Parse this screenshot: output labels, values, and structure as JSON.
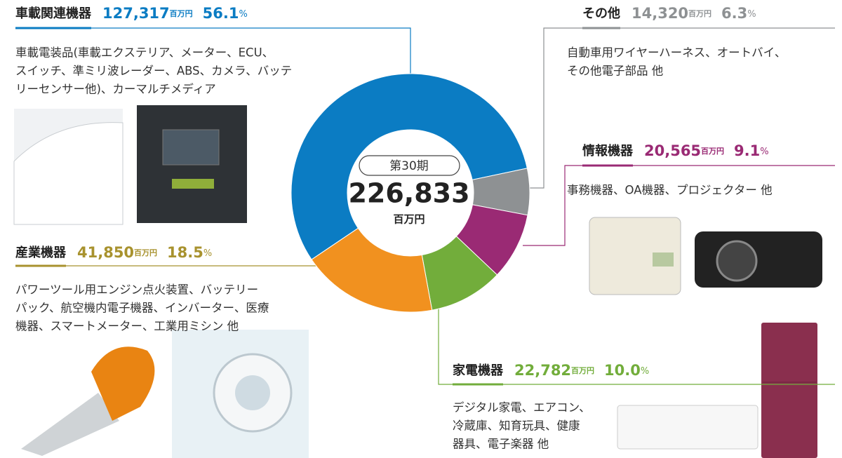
{
  "chart_data": {
    "type": "donut",
    "center_label": "第30期",
    "total": 226833,
    "total_label": "226,833",
    "unit": "百万円",
    "share_unit": "%",
    "categories": [
      "車載関連機器",
      "その他",
      "情報機器",
      "家電機器",
      "産業機器"
    ],
    "values": [
      127317,
      14320,
      20565,
      22782,
      41850
    ],
    "value_labels": [
      "127,317",
      "14,320",
      "20,565",
      "22,782",
      "41,850"
    ],
    "shares": [
      56.1,
      6.3,
      9.1,
      10,
      18.5
    ],
    "share_labels": [
      "56.1",
      "6.3",
      "9.1",
      "10.0",
      "18.5"
    ],
    "colors": [
      "#0b7cc3",
      "#8e9193",
      "#9a2a74",
      "#72ad3b",
      "#f1911f"
    ],
    "text_colors": [
      "#0b7cc3",
      "#8e9193",
      "#9a2a74",
      "#72ad3b",
      "#a8922e"
    ],
    "descriptions": [
      [
        "車載電装品(車載エクステリア、メーター、ECU、",
        "スイッチ、準ミリ波レーダー、ABS、カメラ、バッテ",
        "リーセンサー他)、カーマルチメディア"
      ],
      [
        "自動車用ワイヤーハーネス、オートバイ、",
        "その他電子部品 他"
      ],
      [
        "事務機器、OA機器、プロジェクター 他"
      ],
      [
        "デジタル家電、エアコン、",
        "冷蔵庫、知育玩具、健康",
        "器具、電子楽器 他"
      ],
      [
        "パワーツール用エンジン点火装置、バッテリー",
        "パック、航空機内電子機器、インバーター、医療",
        "機器、スマートメーター、工業用ミシン 他"
      ]
    ]
  }
}
